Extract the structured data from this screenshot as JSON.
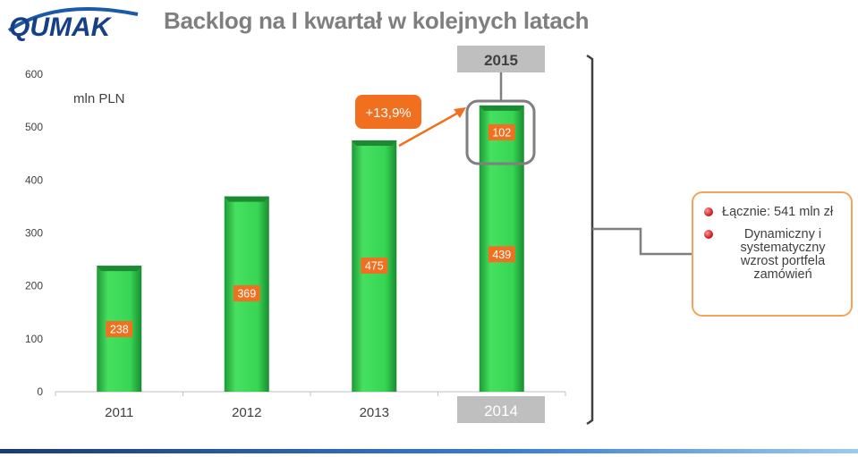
{
  "logo": {
    "text": "QUMAK"
  },
  "title": "Backlog na I kwartał w kolejnych latach",
  "chart_data": {
    "type": "bar",
    "stacked": true,
    "unit_label": "mln PLN",
    "categories": [
      "2011",
      "2012",
      "2013",
      "2014"
    ],
    "series": [
      {
        "values": [
          238,
          369,
          475,
          439
        ]
      },
      {
        "values": [
          0,
          0,
          0,
          102
        ]
      }
    ],
    "ylim": [
      0,
      600
    ],
    "yticks": [
      0,
      100,
      200,
      300,
      400,
      500,
      600
    ],
    "grid": false,
    "highlight_top_label": "2015",
    "highlight_bottom_label": "2014",
    "growth_label": "+13,9%",
    "colors": {
      "bar": "#2ecc4a",
      "label_bg": "#f07020",
      "highlight_bg": "#bfbfbf"
    }
  },
  "side_box": {
    "items": [
      {
        "text": "Łącznie: 541 mln zł"
      },
      {
        "text": "Dynamiczny i systematyczny wzrost portfela zamówień"
      }
    ]
  }
}
